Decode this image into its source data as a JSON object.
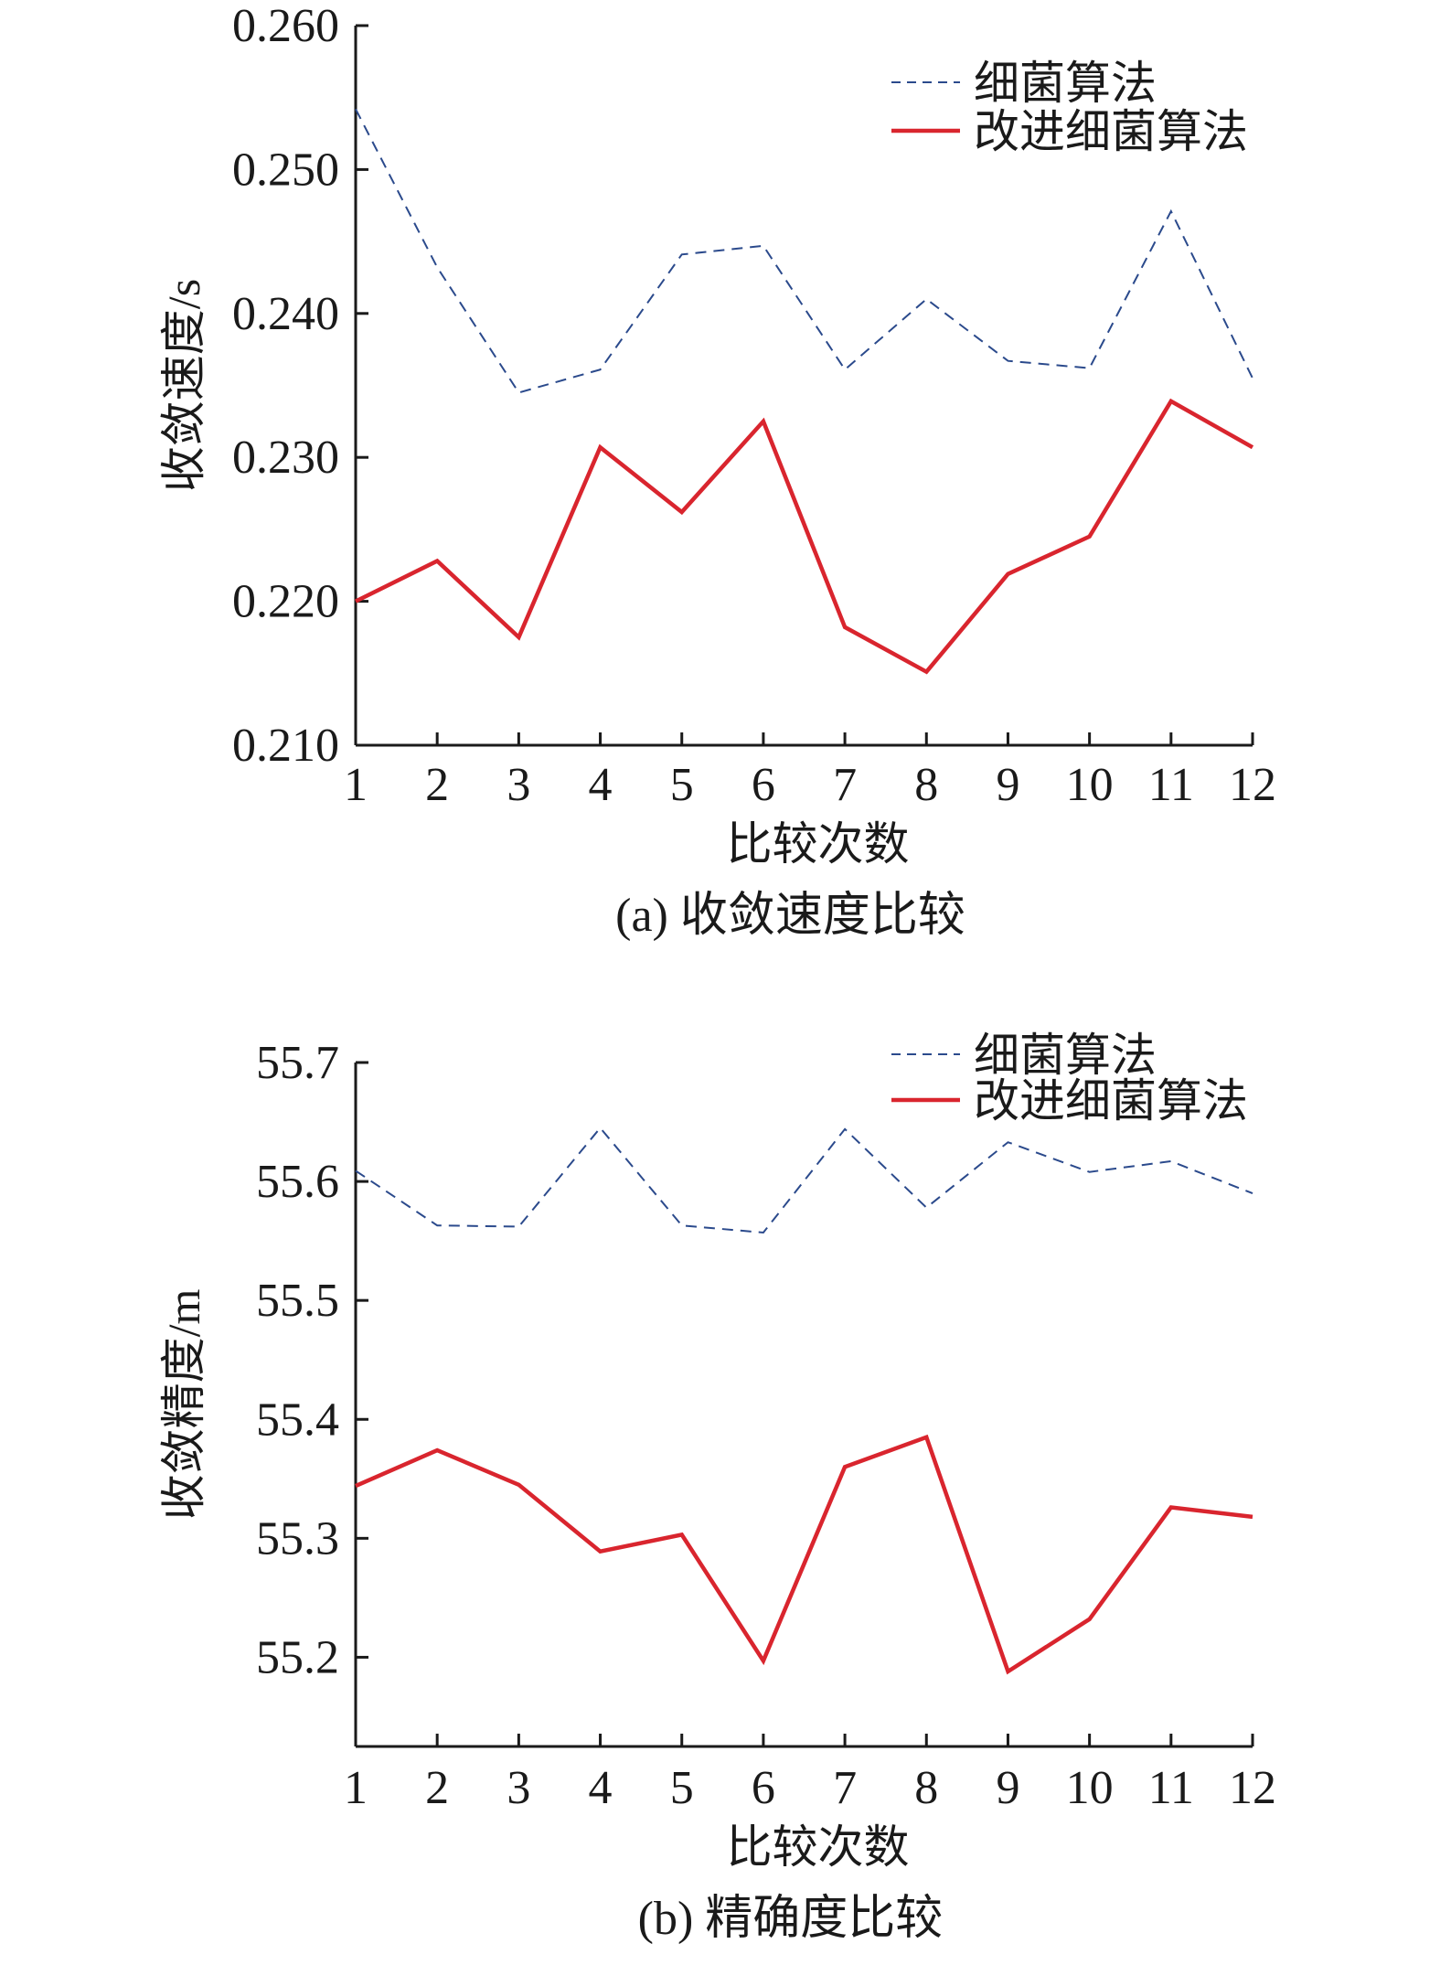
{
  "colors": {
    "baseline_series": "#2b4a8c",
    "improved_series": "#d9252e",
    "axis": "#1a1a1a"
  },
  "chart_data": [
    {
      "type": "line",
      "caption": "(a) 收敛速度比较",
      "xlabel": "比较次数",
      "ylabel": "收敛速度/s",
      "x": [
        1,
        2,
        3,
        4,
        5,
        6,
        7,
        8,
        9,
        10,
        11,
        12
      ],
      "xlim": [
        1,
        12
      ],
      "ylim": [
        0.21,
        0.26
      ],
      "yticks": [
        "0.260",
        "0.250",
        "0.240",
        "0.230",
        "0.220",
        "0.210"
      ],
      "ytick_values": [
        0.26,
        0.25,
        0.24,
        0.23,
        0.22,
        0.21
      ],
      "legend_position": "top-right",
      "grid": false,
      "series": [
        {
          "name": "细菌算法",
          "style": "dashed",
          "color": "#2b4a8c",
          "values": [
            0.2542,
            0.2432,
            0.2345,
            0.2361,
            0.2441,
            0.2447,
            0.2361,
            0.241,
            0.2367,
            0.2362,
            0.2471,
            0.2355
          ]
        },
        {
          "name": "改进细菌算法",
          "style": "solid",
          "color": "#d9252e",
          "values": [
            0.22,
            0.2228,
            0.2175,
            0.2307,
            0.2262,
            0.2325,
            0.2182,
            0.2151,
            0.2219,
            0.2245,
            0.2339,
            0.2307
          ]
        }
      ]
    },
    {
      "type": "line",
      "caption": "(b) 精确度比较",
      "xlabel": "比较次数",
      "ylabel": "收敛精度/m",
      "x": [
        1,
        2,
        3,
        4,
        5,
        6,
        7,
        8,
        9,
        10,
        11,
        12
      ],
      "xlim": [
        1,
        12
      ],
      "ylim": [
        55.125,
        55.7
      ],
      "yticks": [
        "55.7",
        "55.6",
        "55.5",
        "55.4",
        "55.3",
        "55.2"
      ],
      "ytick_values": [
        55.7,
        55.6,
        55.5,
        55.4,
        55.3,
        55.2
      ],
      "legend_position": "top-right",
      "grid": false,
      "series": [
        {
          "name": "细菌算法",
          "style": "dashed",
          "color": "#2b4a8c",
          "values": [
            55.609,
            55.563,
            55.562,
            55.645,
            55.563,
            55.557,
            55.644,
            55.578,
            55.633,
            55.608,
            55.617,
            55.59
          ]
        },
        {
          "name": "改进细菌算法",
          "style": "solid",
          "color": "#d9252e",
          "values": [
            55.344,
            55.374,
            55.345,
            55.289,
            55.303,
            55.197,
            55.36,
            55.385,
            55.188,
            55.232,
            55.326,
            55.318
          ]
        }
      ]
    }
  ]
}
